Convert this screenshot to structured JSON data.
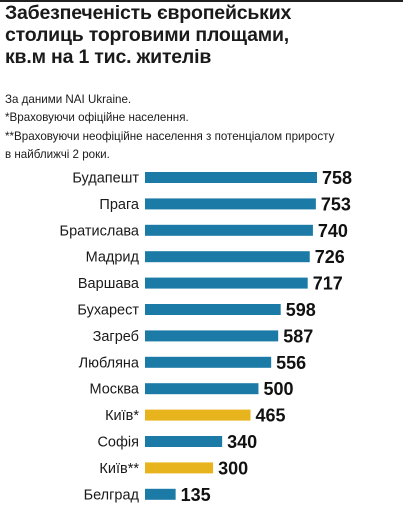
{
  "title_lines": [
    "Забезпеченість європейських",
    "столиць торговими площами,",
    "кв.м на 1 тис. жителів"
  ],
  "notes": [
    "За даними NAI Ukraine.",
    "*Враховуючи офіційне населення.",
    "**Враховуючи неофіційне населення з потенціалом приросту",
    "в найближчі 2 роки."
  ],
  "colors": {
    "primary": "#1B7BA6",
    "highlight": "#E8B41E"
  },
  "chart_data": {
    "type": "bar",
    "orientation": "horizontal",
    "title": "Забезпеченість європейських столиць торговими площами, кв.м на 1 тис. жителів",
    "categories": [
      "Будапешт",
      "Прага",
      "Братислава",
      "Мадрид",
      "Варшава",
      "Бухарест",
      "Загреб",
      "Любляна",
      "Москва",
      "Київ*",
      "Софія",
      "Київ**",
      "Белград"
    ],
    "values": [
      758,
      753,
      740,
      726,
      717,
      598,
      587,
      556,
      500,
      465,
      340,
      300,
      135
    ],
    "highlighted": [
      "Київ*",
      "Київ**"
    ],
    "xlim": [
      0,
      758
    ],
    "grid": false,
    "legend": "none",
    "data_labels": true
  }
}
